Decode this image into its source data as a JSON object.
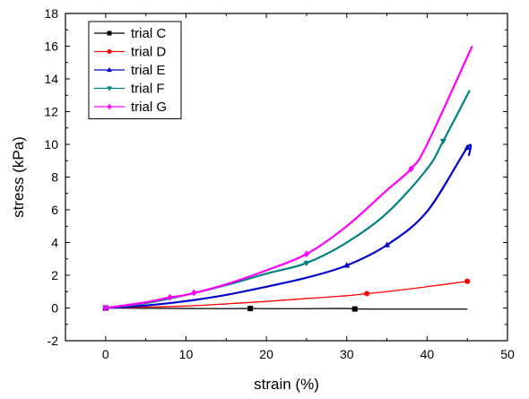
{
  "chart_data": {
    "type": "line",
    "xlabel": "strain (%)",
    "ylabel": "stress (kPa)",
    "xlim": [
      -5,
      50
    ],
    "ylim": [
      -2,
      18
    ],
    "x_ticks": [
      0,
      10,
      20,
      30,
      40,
      50
    ],
    "y_ticks": [
      -2,
      0,
      2,
      4,
      6,
      8,
      10,
      12,
      14,
      16,
      18
    ],
    "grid": false,
    "legend_position": "top-left",
    "series": [
      {
        "name": "trial C",
        "color": "#000000",
        "marker": "square",
        "x": [
          0,
          5,
          10,
          15,
          18,
          20,
          25,
          30,
          31,
          35,
          40,
          45
        ],
        "y": [
          0,
          -0.02,
          -0.03,
          -0.04,
          -0.03,
          -0.04,
          -0.04,
          -0.03,
          -0.06,
          -0.07,
          -0.07,
          -0.07
        ],
        "markers_at": [
          0,
          18,
          31
        ]
      },
      {
        "name": "trial D",
        "color": "#ff0000",
        "marker": "circle",
        "x": [
          0,
          5,
          10,
          15,
          20,
          25,
          30,
          32.5,
          35,
          40,
          45
        ],
        "y": [
          0,
          0.05,
          0.12,
          0.25,
          0.4,
          0.58,
          0.75,
          0.88,
          1.0,
          1.3,
          1.63
        ],
        "markers_at": [
          0,
          32.5,
          45
        ]
      },
      {
        "name": "trial E",
        "color": "#0000cd",
        "marker": "triangle-up",
        "x": [
          0,
          5,
          10,
          15,
          20,
          25,
          30,
          35,
          40,
          45,
          45.2
        ],
        "y": [
          0,
          0.15,
          0.42,
          0.8,
          1.3,
          1.85,
          2.6,
          3.85,
          5.9,
          9.8,
          9.3
        ],
        "markers_at": [
          0,
          30,
          35,
          45
        ]
      },
      {
        "name": "trial F",
        "color": "#008080",
        "marker": "triangle-down",
        "x": [
          0,
          5,
          10,
          15,
          20,
          25,
          30,
          35,
          40,
          42,
          45.3
        ],
        "y": [
          0,
          0.3,
          0.8,
          1.4,
          2.1,
          2.75,
          4.0,
          5.8,
          8.5,
          10.2,
          13.3
        ],
        "markers_at": [
          0,
          25,
          42
        ]
      },
      {
        "name": "trial G",
        "color": "#ff00ff",
        "marker": "diamond",
        "x": [
          0,
          5,
          8,
          10,
          15,
          20,
          25,
          30,
          35,
          38,
          40,
          45.6
        ],
        "y": [
          0,
          0.35,
          0.65,
          0.8,
          1.45,
          2.3,
          3.3,
          5.0,
          7.2,
          8.5,
          10.0,
          16.0
        ],
        "markers_at": [
          0,
          8,
          11,
          25,
          38
        ]
      }
    ]
  }
}
